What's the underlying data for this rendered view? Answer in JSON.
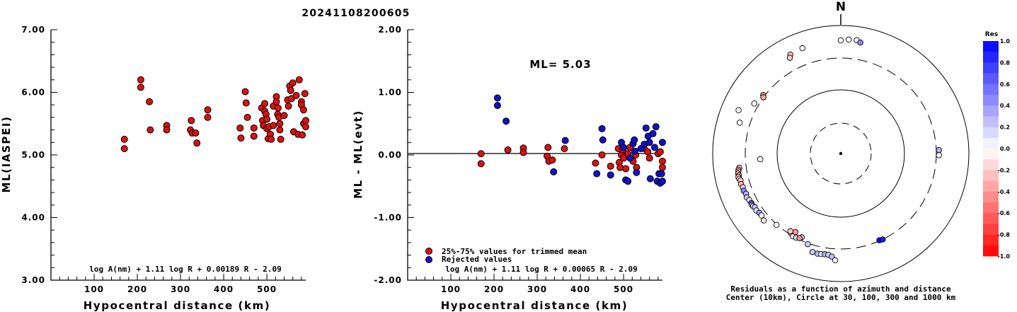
{
  "page_title": "20241108200605",
  "chart_data": [
    {
      "type": "scatter",
      "title": "",
      "xlabel": "Hypocentral distance (km)",
      "ylabel": "ML(IASPEI)",
      "xlim": [
        0,
        590
      ],
      "ylim": [
        3.0,
        7.0
      ],
      "xticks": [
        "100",
        "200",
        "300",
        "400",
        "500"
      ],
      "yticks": [
        "3.00",
        "4.00",
        "5.00",
        "6.00",
        "7.00"
      ],
      "formula": "log A(nm) + 1.11 log R + 0.00189 R - 2.09",
      "color": "#dd1111",
      "points": [
        [
          170,
          5.25
        ],
        [
          170,
          5.1
        ],
        [
          208,
          6.2
        ],
        [
          208,
          6.08
        ],
        [
          228,
          5.85
        ],
        [
          230,
          5.4
        ],
        [
          268,
          5.47
        ],
        [
          268,
          5.4
        ],
        [
          323,
          5.4
        ],
        [
          325,
          5.55
        ],
        [
          327,
          5.35
        ],
        [
          335,
          5.35
        ],
        [
          338,
          5.19
        ],
        [
          363,
          5.72
        ],
        [
          363,
          5.6
        ],
        [
          438,
          5.43
        ],
        [
          440,
          5.27
        ],
        [
          450,
          6.01
        ],
        [
          452,
          5.83
        ],
        [
          455,
          5.6
        ],
        [
          470,
          5.43
        ],
        [
          470,
          5.3
        ],
        [
          488,
          5.75
        ],
        [
          490,
          5.55
        ],
        [
          492,
          5.47
        ],
        [
          495,
          5.82
        ],
        [
          495,
          5.7
        ],
        [
          498,
          5.65
        ],
        [
          500,
          5.57
        ],
        [
          500,
          5.42
        ],
        [
          503,
          5.26
        ],
        [
          505,
          5.45
        ],
        [
          508,
          5.33
        ],
        [
          510,
          5.25
        ],
        [
          515,
          5.78
        ],
        [
          515,
          5.47
        ],
        [
          522,
          5.93
        ],
        [
          522,
          5.85
        ],
        [
          525,
          5.65
        ],
        [
          526,
          5.75
        ],
        [
          528,
          5.6
        ],
        [
          530,
          5.5
        ],
        [
          530,
          5.4
        ],
        [
          532,
          5.25
        ],
        [
          540,
          5.63
        ],
        [
          548,
          5.88
        ],
        [
          550,
          5.78
        ],
        [
          553,
          6.1
        ],
        [
          555,
          6.03
        ],
        [
          557,
          5.9
        ],
        [
          560,
          6.15
        ],
        [
          562,
          5.37
        ],
        [
          568,
          5.95
        ],
        [
          572,
          5.33
        ],
        [
          575,
          6.2
        ],
        [
          580,
          5.85
        ],
        [
          580,
          5.8
        ],
        [
          582,
          5.32
        ],
        [
          585,
          5.72
        ],
        [
          585,
          5.5
        ],
        [
          588,
          5.98
        ],
        [
          590,
          5.55
        ],
        [
          590,
          5.45
        ]
      ]
    },
    {
      "type": "scatter",
      "title": "",
      "xlabel": "Hypocentral distance (km)",
      "ylabel": "ML - ML(evt)",
      "xlim": [
        0,
        590
      ],
      "ylim": [
        -2.0,
        2.0
      ],
      "xticks": [
        "100",
        "200",
        "300",
        "400",
        "500"
      ],
      "yticks": [
        "-2.00",
        "-1.00",
        "0.00",
        "1.00",
        "2.00"
      ],
      "annotation": "ML= 5.03",
      "formula": "log A(nm) + 1.11 log R + 0.00065 R - 2.09",
      "legend": [
        {
          "label": "25%-75% values for trimmed mean",
          "color": "#dd1111"
        },
        {
          "label": "Rejected values",
          "color": "#1111cc"
        }
      ],
      "series": [
        {
          "name": "25%-75% values for trimmed mean",
          "color": "#dd1111",
          "points": [
            [
              170,
              0.02
            ],
            [
              170,
              -0.14
            ],
            [
              232,
              0.08
            ],
            [
              268,
              0.11
            ],
            [
              268,
              0.04
            ],
            [
              323,
              -0.02
            ],
            [
              325,
              0.12
            ],
            [
              327,
              -0.1
            ],
            [
              335,
              -0.08
            ],
            [
              363,
              0.1
            ],
            [
              435,
              -0.13
            ],
            [
              450,
              0.0
            ],
            [
              470,
              -0.18
            ],
            [
              488,
              0.1
            ],
            [
              490,
              -0.12
            ],
            [
              492,
              -0.2
            ],
            [
              495,
              0.0
            ],
            [
              498,
              0.08
            ],
            [
              500,
              -0.05
            ],
            [
              505,
              -0.22
            ],
            [
              510,
              0.02
            ],
            [
              515,
              0.12
            ],
            [
              522,
              -0.1
            ],
            [
              528,
              0.0
            ],
            [
              530,
              -0.2
            ],
            [
              548,
              0.1
            ],
            [
              556,
              0.05
            ],
            [
              560,
              -0.05
            ],
            [
              580,
              0.02
            ],
            [
              585,
              0.05
            ],
            [
              590,
              -0.1
            ],
            [
              590,
              -0.2
            ]
          ]
        },
        {
          "name": "Rejected values",
          "color": "#1111cc",
          "points": [
            [
              208,
              0.91
            ],
            [
              208,
              0.79
            ],
            [
              228,
              0.54
            ],
            [
              338,
              -0.27
            ],
            [
              365,
              0.23
            ],
            [
              438,
              -0.3
            ],
            [
              450,
              0.42
            ],
            [
              452,
              0.24
            ],
            [
              470,
              -0.32
            ],
            [
              495,
              0.2
            ],
            [
              500,
              0.12
            ],
            [
              505,
              -0.4
            ],
            [
              510,
              -0.42
            ],
            [
              515,
              -0.05
            ],
            [
              522,
              0.18
            ],
            [
              525,
              0.24
            ],
            [
              526,
              0.06
            ],
            [
              530,
              -0.28
            ],
            [
              540,
              0.1
            ],
            [
              548,
              0.17
            ],
            [
              552,
              0.43
            ],
            [
              557,
              0.3
            ],
            [
              560,
              0.2
            ],
            [
              562,
              -0.38
            ],
            [
              568,
              0.34
            ],
            [
              572,
              0.12
            ],
            [
              575,
              0.45
            ],
            [
              578,
              -0.42
            ],
            [
              582,
              -0.3
            ],
            [
              585,
              -0.45
            ],
            [
              588,
              -0.3
            ],
            [
              590,
              -0.42
            ],
            [
              590,
              0.2
            ]
          ]
        }
      ]
    },
    {
      "type": "polar-scatter",
      "north_label": "N",
      "caption_line1": "Residuals as a function of azimuth and distance",
      "caption_line2": "Center (10km), Circle at 30, 100, 300 and 1000 km",
      "colorbar_title": "Res",
      "colorbar_range": [
        -1.0,
        1.0
      ],
      "colorbar_labels": [
        "1.0",
        "0.8",
        "0.6",
        "0.4",
        "0.2",
        "0.0",
        "-0.2",
        "-0.4",
        "-0.6",
        "-0.8",
        "-1.0"
      ],
      "points": [
        [
          0,
          530,
          0.0
        ],
        [
          4,
          535,
          0.0
        ],
        [
          8,
          536,
          0.05
        ],
        [
          10,
          528,
          0.45
        ],
        [
          340,
          525,
          0.0
        ],
        [
          333,
          520,
          -0.25
        ],
        [
          332,
          508,
          -0.2
        ],
        [
          307,
          455,
          -0.45
        ],
        [
          306,
          448,
          -0.35
        ],
        [
          300,
          468,
          0.0
        ],
        [
          293,
          520,
          0.0
        ],
        [
          287,
          495,
          0.0
        ],
        [
          262,
          480,
          -0.25
        ],
        [
          261,
          485,
          -0.35
        ],
        [
          260,
          487,
          -0.3
        ],
        [
          259,
          490,
          -0.2
        ],
        [
          258,
          488,
          -0.45
        ],
        [
          257,
          492,
          -0.1
        ],
        [
          256,
          490,
          -0.15
        ],
        [
          255,
          486,
          -0.2
        ],
        [
          253,
          489,
          -0.3
        ],
        [
          251,
          485,
          -0.2
        ],
        [
          249,
          487,
          0.45
        ],
        [
          247,
          482,
          0.3
        ],
        [
          245,
          486,
          0.2
        ],
        [
          243,
          481,
          0.1
        ],
        [
          241,
          479,
          0.6
        ],
        [
          240,
          481,
          0.35
        ],
        [
          239,
          479,
          -0.1
        ],
        [
          238,
          475,
          0.2
        ],
        [
          236,
          477,
          0.1
        ],
        [
          234,
          472,
          0.4
        ],
        [
          232,
          471,
          0.0
        ],
        [
          229,
          478,
          -0.1
        ],
        [
          266,
          378,
          0.0
        ],
        [
          222,
          450,
          0.0
        ],
        [
          212,
          440,
          -0.3
        ],
        [
          210,
          448,
          -0.1
        ],
        [
          205,
          433,
          0.2
        ],
        [
          200,
          452,
          0.2
        ],
        [
          210,
          425,
          -0.4
        ],
        [
          213,
          434,
          -0.2
        ],
        [
          208,
          446,
          0.15
        ],
        [
          206,
          441,
          -0.45
        ],
        [
          196,
          480,
          0.2
        ],
        [
          193,
          482,
          0.25
        ],
        [
          191,
          480,
          0.1
        ],
        [
          189,
          478,
          0.3
        ],
        [
          187,
          478,
          0.2
        ],
        [
          185,
          485,
          0.25
        ],
        [
          156,
          445,
          0.95
        ],
        [
          154,
          448,
          0.9
        ],
        [
          88,
          460,
          0.3
        ],
        [
          91,
          460,
          0.0
        ],
        [
          183,
          501,
          0.0
        ]
      ]
    }
  ]
}
